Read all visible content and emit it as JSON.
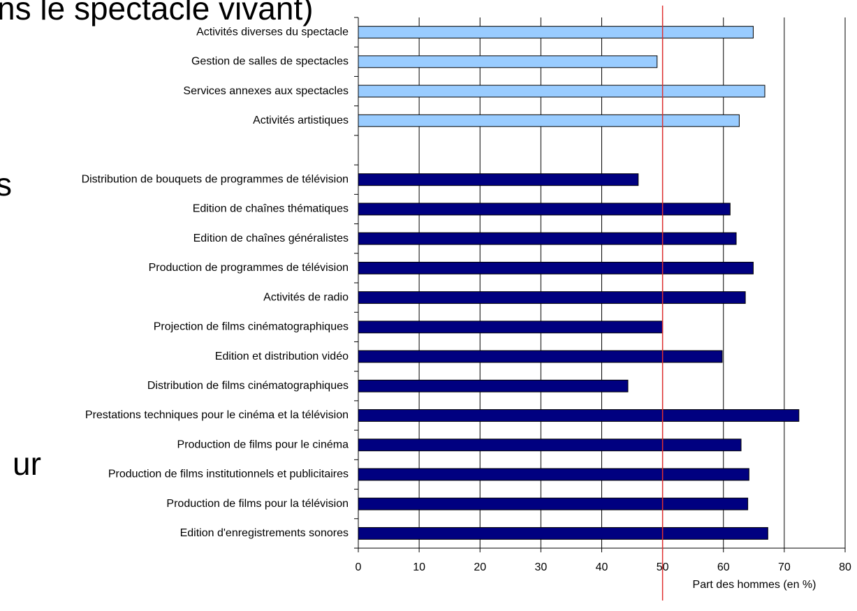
{
  "chart_data": {
    "type": "barh",
    "annotations": [
      "ns le spectacle vivant)",
      "s",
      "ur"
    ],
    "x_label": "Part des hommes (en %)",
    "categories": [
      "Activités diverses du spectacle",
      "Gestion de salles de spectacles",
      "Services annexes aux spectacles",
      "Activités artistiques",
      null,
      "Distribution de bouquets de programmes de télévision",
      "Edition de chaînes thématiques",
      "Edition de chaînes généralistes",
      "Production de programmes de télévision",
      "Activités de radio",
      "Projection de films cinématographiques",
      "Edition et distribution vidéo",
      "Distribution de films cinématographiques",
      "Prestations techniques pour le cinéma et la télévision",
      "Production de films pour le cinéma",
      "Production de films institutionnels et publicitaires",
      "Production de films pour la télévision",
      "Edition d'enregistrements sonores"
    ],
    "values": [
      64.9,
      49.1,
      66.8,
      62.6,
      null,
      46.0,
      61.1,
      62.1,
      64.9,
      63.6,
      50.0,
      59.8,
      44.3,
      72.4,
      62.9,
      64.2,
      64.0,
      67.3
    ],
    "colors": [
      "#99ccff",
      "#99ccff",
      "#99ccff",
      "#99ccff",
      null,
      "#000080",
      "#000080",
      "#000080",
      "#000080",
      "#000080",
      "#000080",
      "#000080",
      "#000080",
      "#000080",
      "#000080",
      "#000080",
      "#000080",
      "#000080"
    ],
    "xlim": [
      0,
      80
    ],
    "xticks": [
      0,
      10,
      20,
      30,
      40,
      50,
      60,
      70,
      80
    ],
    "grid": true,
    "reference_line": 50,
    "reference_color": "#e03030"
  }
}
